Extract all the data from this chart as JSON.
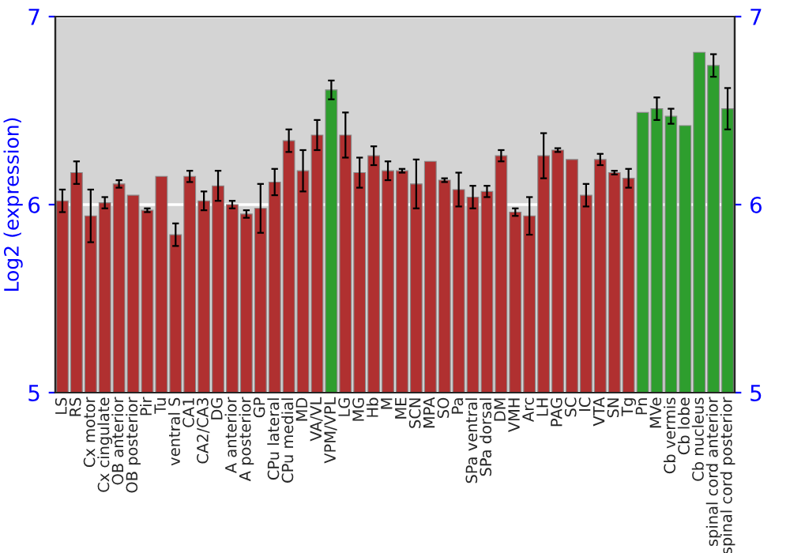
{
  "chart_data": {
    "type": "bar",
    "ylabel": "Log2 (expression)",
    "categories": [
      "LS",
      "RS",
      "Cx motor",
      "Cx cingulate",
      "OB anterior",
      "OB posterior",
      "Pir",
      "Tu",
      "ventral S",
      "CA1",
      "CA2/CA3",
      "DG",
      "A anterior",
      "A posterior",
      "GP",
      "CPu lateral",
      "CPu medial",
      "MD",
      "VA/VL",
      "VPM/VPL",
      "LG",
      "MG",
      "Hb",
      "M",
      "ME",
      "SCN",
      "MPA",
      "SO",
      "Pa",
      "SPa ventral",
      "SPa dorsal",
      "DM",
      "VMH",
      "Arc",
      "LH",
      "PAG",
      "SC",
      "IC",
      "VTA",
      "SN",
      "Tg",
      "Pn",
      "MVe",
      "Cb vermis",
      "Cb lobe",
      "Cb nucleus",
      "spinal cord anterior",
      "spinal cord posterior"
    ],
    "values": [
      6.02,
      6.17,
      5.94,
      6.01,
      6.11,
      6.05,
      5.97,
      6.15,
      5.84,
      6.15,
      6.02,
      6.1,
      6.0,
      5.95,
      5.98,
      6.12,
      6.34,
      6.18,
      6.37,
      6.61,
      6.37,
      6.17,
      6.26,
      6.18,
      6.18,
      6.11,
      6.23,
      6.13,
      6.08,
      6.04,
      6.07,
      6.26,
      5.96,
      5.94,
      6.26,
      6.29,
      6.24,
      6.05,
      6.24,
      6.17,
      6.14,
      6.49,
      6.51,
      6.47,
      6.42,
      6.81,
      6.74,
      6.51
    ],
    "errors": [
      0.06,
      0.06,
      0.14,
      0.03,
      0.02,
      null,
      0.01,
      null,
      0.06,
      0.03,
      0.05,
      0.08,
      0.02,
      0.02,
      0.13,
      0.07,
      0.06,
      0.11,
      0.08,
      0.05,
      0.12,
      0.08,
      0.05,
      0.05,
      0.01,
      0.13,
      null,
      0.01,
      0.09,
      0.06,
      0.03,
      0.03,
      0.02,
      0.1,
      0.12,
      0.01,
      null,
      0.06,
      0.03,
      0.01,
      0.05,
      null,
      0.06,
      0.04,
      null,
      null,
      0.06,
      0.11
    ],
    "colors": [
      "#b03030",
      "#b03030",
      "#b03030",
      "#b03030",
      "#b03030",
      "#b03030",
      "#b03030",
      "#b03030",
      "#b03030",
      "#b03030",
      "#b03030",
      "#b03030",
      "#b03030",
      "#b03030",
      "#b03030",
      "#b03030",
      "#b03030",
      "#b03030",
      "#b03030",
      "#2e9e2e",
      "#b03030",
      "#b03030",
      "#b03030",
      "#b03030",
      "#b03030",
      "#b03030",
      "#b03030",
      "#b03030",
      "#b03030",
      "#b03030",
      "#b03030",
      "#b03030",
      "#b03030",
      "#b03030",
      "#b03030",
      "#b03030",
      "#b03030",
      "#b03030",
      "#b03030",
      "#b03030",
      "#b03030",
      "#2e9e2e",
      "#2e9e2e",
      "#2e9e2e",
      "#2e9e2e",
      "#2e9e2e",
      "#2e9e2e",
      "#2e9e2e"
    ],
    "ylim": [
      5,
      7
    ],
    "yticks": [
      5,
      6,
      7
    ],
    "y2lim": [
      5,
      7
    ],
    "y2ticks": [
      5,
      6,
      7
    ],
    "grid": "y"
  }
}
